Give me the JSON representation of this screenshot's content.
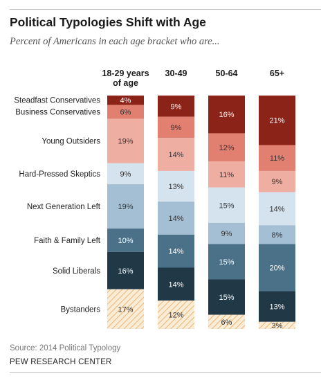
{
  "title": "Political Typologies Shift with Age",
  "subtitle": "Percent of Americans in each age bracket who are...",
  "source": "Source: 2014 Political Typology",
  "credit": "PEW RESEARCH CENTER",
  "colors": {
    "Steadfast Conservatives": "#8b2318",
    "Business Conservatives": "#e17f71",
    "Young Outsiders": "#efaea2",
    "Hard-Pressed Skeptics": "#d4e3ee",
    "Next Generation Left": "#a4bfd3",
    "Faith & Family Left": "#4b7189",
    "Solid Liberals": "#213847",
    "Bystanders": "#fbecd6",
    "bystander_hatch": "#e4a861",
    "dark_label": "#ffffff",
    "light_label": "#333333"
  },
  "chart_data": {
    "type": "bar",
    "stacked": true,
    "normalized_percent": true,
    "categories": [
      "18-29 years of age",
      "30-49",
      "50-64",
      "65+"
    ],
    "series": [
      {
        "name": "Steadfast Conservatives",
        "values": [
          4,
          9,
          16,
          21
        ],
        "labels": [
          "4%",
          "9%",
          "16%",
          "21%"
        ]
      },
      {
        "name": "Business Conservatives",
        "values": [
          6,
          9,
          12,
          11
        ],
        "labels": [
          "6%",
          "9%",
          "12%",
          "11%"
        ]
      },
      {
        "name": "Young Outsiders",
        "values": [
          19,
          14,
          11,
          9
        ],
        "labels": [
          "19%",
          "14%",
          "11%",
          "9%"
        ]
      },
      {
        "name": "Hard-Pressed Skeptics",
        "values": [
          9,
          13,
          15,
          14
        ],
        "labels": [
          "9%",
          "13%",
          "15%",
          "14%"
        ]
      },
      {
        "name": "Next Generation Left",
        "values": [
          19,
          14,
          9,
          8
        ],
        "labels": [
          "19%",
          "14%",
          "9%",
          "8%"
        ]
      },
      {
        "name": "Faith & Family Left",
        "values": [
          10,
          14,
          15,
          20
        ],
        "labels": [
          "10%",
          "14%",
          "15%",
          "20%"
        ]
      },
      {
        "name": "Solid Liberals",
        "values": [
          16,
          14,
          15,
          13
        ],
        "labels": [
          "16%",
          "14%",
          "15%",
          "13%"
        ]
      },
      {
        "name": "Bystanders",
        "values": [
          17,
          12,
          6,
          3
        ],
        "labels": [
          "17%",
          "12%",
          "6%",
          "3%"
        ]
      }
    ]
  }
}
